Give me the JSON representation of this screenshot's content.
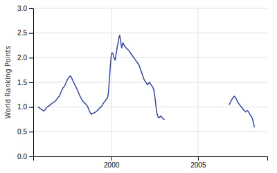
{
  "chart_data": {
    "type": "line",
    "ylabel": "World Ranking Points",
    "xlim": [
      1995.5,
      2009.0
    ],
    "ylim": [
      0,
      3.0
    ],
    "yticks": [
      {
        "value": 0,
        "label": "0.0"
      },
      0.5,
      {
        "value": 1.0,
        "label": "1.0"
      },
      1.5,
      {
        "value": 2.0,
        "label": "2.0"
      },
      2.5,
      {
        "value": 3.0,
        "label": "3.0"
      }
    ],
    "xticks": [
      2000,
      2005
    ],
    "grid": true,
    "series": [
      {
        "color": "#3344bb",
        "x": [
          1995.8,
          1995.9,
          1996.0,
          1996.1,
          1996.2,
          1996.3,
          1996.4,
          1996.5,
          1996.6,
          1996.7,
          1996.8,
          1996.9,
          1997.0,
          1997.1,
          1997.2,
          1997.3,
          1997.4,
          1997.5,
          1997.6,
          1997.65,
          1997.7,
          1997.8,
          1997.9,
          1998.0,
          1998.1,
          1998.2,
          1998.3,
          1998.4,
          1998.5,
          1998.6,
          1998.65,
          1998.7,
          1998.8,
          1998.85,
          1998.9,
          1999.0,
          1999.1,
          1999.2,
          1999.3,
          1999.4,
          1999.45,
          1999.5,
          1999.55,
          1999.6,
          1999.65,
          1999.7,
          1999.75,
          1999.8,
          1999.85,
          1999.9,
          1999.95,
          2000.0,
          2000.05,
          2000.1,
          2000.15,
          2000.2,
          2000.22,
          2000.25,
          2000.28,
          2000.3,
          2000.33,
          2000.36,
          2000.4,
          2000.42,
          2000.45,
          2000.48,
          2000.5,
          2000.52,
          2000.55,
          2000.58,
          2000.6,
          2000.62,
          2000.65,
          2000.68,
          2000.7,
          2000.75,
          2000.8,
          2000.85,
          2000.9,
          2001.0,
          2001.1,
          2001.2,
          2001.3,
          2001.4,
          2001.5,
          2001.6,
          2001.7,
          2001.8,
          2001.9,
          2002.0,
          2002.1,
          2002.15,
          2002.2,
          2002.3,
          2002.4,
          2002.45,
          2002.5,
          2002.55,
          2002.6,
          2002.65,
          2002.7,
          2002.75,
          2002.8,
          2002.85,
          2002.9,
          2002.95,
          2003.0,
          2003.05
        ],
        "values": [
          1.0,
          0.97,
          0.95,
          0.92,
          0.95,
          1.0,
          1.02,
          1.05,
          1.08,
          1.1,
          1.13,
          1.18,
          1.22,
          1.3,
          1.38,
          1.42,
          1.5,
          1.57,
          1.62,
          1.63,
          1.6,
          1.52,
          1.45,
          1.38,
          1.3,
          1.22,
          1.15,
          1.1,
          1.07,
          1.03,
          1.0,
          0.95,
          0.88,
          0.85,
          0.87,
          0.88,
          0.9,
          0.93,
          0.97,
          1.0,
          1.02,
          1.05,
          1.08,
          1.1,
          1.12,
          1.15,
          1.17,
          1.2,
          1.35,
          1.6,
          1.85,
          2.05,
          2.1,
          2.08,
          2.0,
          1.97,
          1.95,
          2.0,
          2.08,
          2.12,
          2.18,
          2.25,
          2.3,
          2.35,
          2.42,
          2.45,
          2.43,
          2.38,
          2.32,
          2.25,
          2.2,
          2.23,
          2.28,
          2.3,
          2.28,
          2.25,
          2.22,
          2.2,
          2.18,
          2.15,
          2.1,
          2.05,
          2.0,
          1.95,
          1.9,
          1.85,
          1.75,
          1.65,
          1.55,
          1.5,
          1.45,
          1.48,
          1.5,
          1.45,
          1.4,
          1.35,
          1.25,
          1.1,
          0.95,
          0.85,
          0.8,
          0.78,
          0.8,
          0.82,
          0.8,
          0.78,
          0.76,
          0.75
        ]
      },
      {
        "color": "#3344bb",
        "x": [
          2006.8,
          2006.85,
          2006.9,
          2006.95,
          2007.0,
          2007.05,
          2007.1,
          2007.15,
          2007.2,
          2007.25,
          2007.3,
          2007.35,
          2007.4,
          2007.45,
          2007.5,
          2007.55,
          2007.6,
          2007.65,
          2007.7,
          2007.75,
          2007.8,
          2007.85,
          2007.9,
          2007.95,
          2008.0,
          2008.05,
          2008.1,
          2008.15,
          2008.2,
          2008.25
        ],
        "values": [
          1.05,
          1.08,
          1.12,
          1.15,
          1.18,
          1.2,
          1.22,
          1.2,
          1.17,
          1.13,
          1.1,
          1.07,
          1.05,
          1.02,
          1.0,
          0.98,
          0.96,
          0.93,
          0.92,
          0.9,
          0.92,
          0.93,
          0.91,
          0.88,
          0.85,
          0.82,
          0.8,
          0.75,
          0.68,
          0.6
        ]
      }
    ]
  }
}
